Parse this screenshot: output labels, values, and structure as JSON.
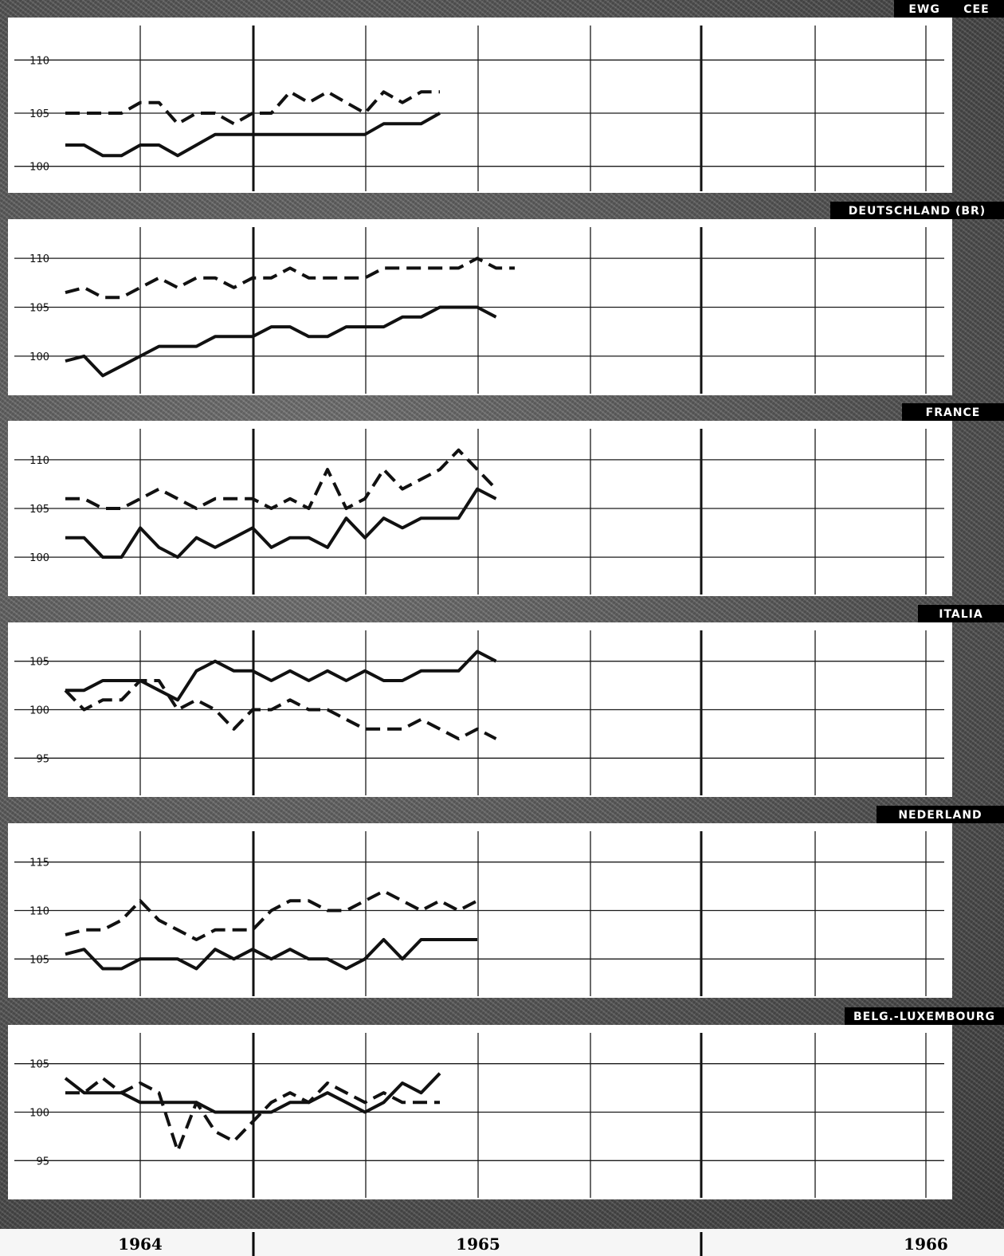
{
  "chart_data": [
    {
      "type": "line",
      "title": "EWG     CEE",
      "yticks": [
        100,
        105,
        110
      ],
      "ylim": [
        97.5,
        114
      ],
      "series": [
        {
          "style": "dashed",
          "values": [
            105,
            105,
            105,
            105,
            106,
            106,
            104,
            105,
            105,
            104,
            105,
            105,
            107,
            106,
            107,
            106,
            105,
            107,
            106,
            107,
            107
          ]
        },
        {
          "style": "solid",
          "values": [
            102,
            102,
            101,
            101,
            102,
            102,
            101,
            102,
            103,
            103,
            103,
            103,
            103,
            103,
            103,
            103,
            103,
            104,
            104,
            104,
            105
          ]
        }
      ]
    },
    {
      "type": "line",
      "title": "DEUTSCHLAND (BR)",
      "yticks": [
        100,
        105,
        110
      ],
      "ylim": [
        96,
        114
      ],
      "series": [
        {
          "style": "dashed",
          "values": [
            106.5,
            107,
            106,
            106,
            107,
            108,
            107,
            108,
            108,
            107,
            108,
            108,
            109,
            108,
            108,
            108,
            108,
            109,
            109,
            109,
            109,
            109,
            110,
            109,
            109
          ]
        },
        {
          "style": "solid",
          "values": [
            99.5,
            100,
            98,
            99,
            100,
            101,
            101,
            101,
            102,
            102,
            102,
            103,
            103,
            102,
            102,
            103,
            103,
            103,
            104,
            104,
            105,
            105,
            105,
            104
          ]
        }
      ]
    },
    {
      "type": "line",
      "title": "FRANCE",
      "yticks": [
        100,
        105,
        110
      ],
      "ylim": [
        96,
        114
      ],
      "series": [
        {
          "style": "dashed",
          "values": [
            106,
            106,
            105,
            105,
            106,
            107,
            106,
            105,
            106,
            106,
            106,
            105,
            106,
            105,
            109,
            105,
            106,
            109,
            107,
            108,
            109,
            111,
            109,
            107
          ]
        },
        {
          "style": "solid",
          "values": [
            102,
            102,
            100,
            100,
            103,
            101,
            100,
            102,
            101,
            102,
            103,
            101,
            102,
            102,
            101,
            104,
            102,
            104,
            103,
            104,
            104,
            104,
            107,
            106
          ]
        }
      ]
    },
    {
      "type": "line",
      "title": "ITALIA",
      "yticks": [
        95,
        100,
        105
      ],
      "ylim": [
        91,
        109
      ],
      "series": [
        {
          "style": "solid",
          "values": [
            102,
            102,
            103,
            103,
            103,
            102,
            101,
            104,
            105,
            104,
            104,
            103,
            104,
            103,
            104,
            103,
            104,
            103,
            103,
            104,
            104,
            104,
            106,
            105
          ]
        },
        {
          "style": "dashed",
          "values": [
            102,
            100,
            101,
            101,
            103,
            103,
            100,
            101,
            100,
            98,
            100,
            100,
            101,
            100,
            100,
            99,
            98,
            98,
            98,
            99,
            98,
            97,
            98,
            97
          ]
        }
      ]
    },
    {
      "type": "line",
      "title": "NEDERLAND",
      "yticks": [
        105,
        110,
        115
      ],
      "ylim": [
        101,
        119
      ],
      "series": [
        {
          "style": "dashed",
          "values": [
            107.5,
            108,
            108,
            109,
            111,
            109,
            108,
            107,
            108,
            108,
            108,
            110,
            111,
            111,
            110,
            110,
            111,
            112,
            111,
            110,
            111,
            110,
            111
          ]
        },
        {
          "style": "solid",
          "values": [
            105.5,
            106,
            104,
            104,
            105,
            105,
            105,
            104,
            106,
            105,
            106,
            105,
            106,
            105,
            105,
            104,
            105,
            107,
            105,
            107,
            107,
            107,
            107
          ]
        }
      ]
    },
    {
      "type": "line",
      "title": "BELG.-LUXEMBOURG",
      "yticks": [
        95,
        100,
        105
      ],
      "ylim": [
        91,
        109
      ],
      "series": [
        {
          "style": "dashed",
          "values": [
            102,
            102,
            103.5,
            102,
            103,
            102,
            96,
            101,
            98,
            97,
            99,
            101,
            102,
            101,
            103,
            102,
            101,
            102,
            101,
            101,
            101
          ]
        },
        {
          "style": "solid",
          "values": [
            103.5,
            102,
            102,
            102,
            101,
            101,
            101,
            101,
            100,
            100,
            100,
            100,
            101,
            101,
            102,
            101,
            100,
            101,
            103,
            102,
            104
          ]
        }
      ]
    }
  ],
  "x_axis": {
    "years": [
      "1964",
      "1965",
      "1966"
    ]
  }
}
